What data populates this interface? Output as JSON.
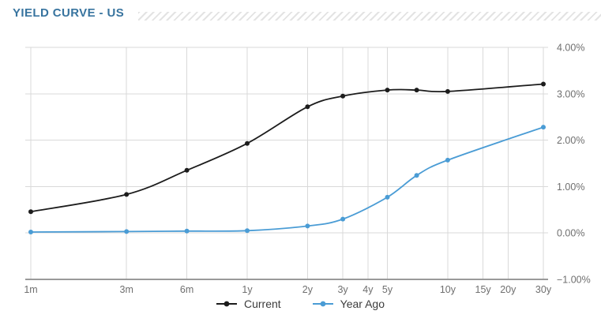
{
  "header": {
    "title": "YIELD CURVE - US"
  },
  "colors": {
    "title": "#38749f",
    "current": "#1c1c1c",
    "year_ago": "#4a9cd5",
    "grid": "#d9d9d9",
    "axis": "#9a9a9a",
    "tick_label": "#6f6f6f",
    "legend_text": "#3c3c3c",
    "hatch": "#e3e3e3"
  },
  "chart_data": {
    "type": "line",
    "title": "YIELD CURVE - US",
    "x_scale": "log",
    "grid": true,
    "legend_position": "bottom",
    "y_axis_side": "right",
    "ylim": [
      -1,
      4
    ],
    "y_ticks": [
      4,
      3,
      2,
      1,
      0,
      -1
    ],
    "y_tick_labels": [
      "4.00%",
      "3.00%",
      "2.00%",
      "1.00%",
      "0.00%",
      "−1.00%"
    ],
    "x_tick_labels": [
      "1m",
      "3m",
      "6m",
      "1y",
      "2y",
      "3y",
      "4y",
      "5y",
      "10y",
      "15y",
      "20y",
      "30y"
    ],
    "x_tick_maturities_years": [
      0.0833,
      0.25,
      0.5,
      1,
      2,
      3,
      4,
      5,
      10,
      15,
      20,
      30
    ],
    "point_maturity_labels": [
      "1m",
      "3m",
      "6m",
      "1y",
      "2y",
      "3y",
      "5y",
      "7y",
      "10y",
      "30y"
    ],
    "point_maturities_years": [
      0.0833,
      0.25,
      0.5,
      1,
      2,
      3,
      5,
      7,
      10,
      30
    ],
    "series": [
      {
        "name": "Current",
        "color_key": "current",
        "values": [
          0.46,
          0.83,
          1.35,
          1.93,
          2.72,
          2.95,
          3.08,
          3.08,
          3.05,
          3.21
        ]
      },
      {
        "name": "Year Ago",
        "color_key": "year_ago",
        "values": [
          0.02,
          0.03,
          0.04,
          0.05,
          0.15,
          0.3,
          0.77,
          1.24,
          1.57,
          2.28
        ]
      }
    ]
  },
  "legend": {
    "items": [
      {
        "label": "Current"
      },
      {
        "label": "Year Ago"
      }
    ]
  }
}
